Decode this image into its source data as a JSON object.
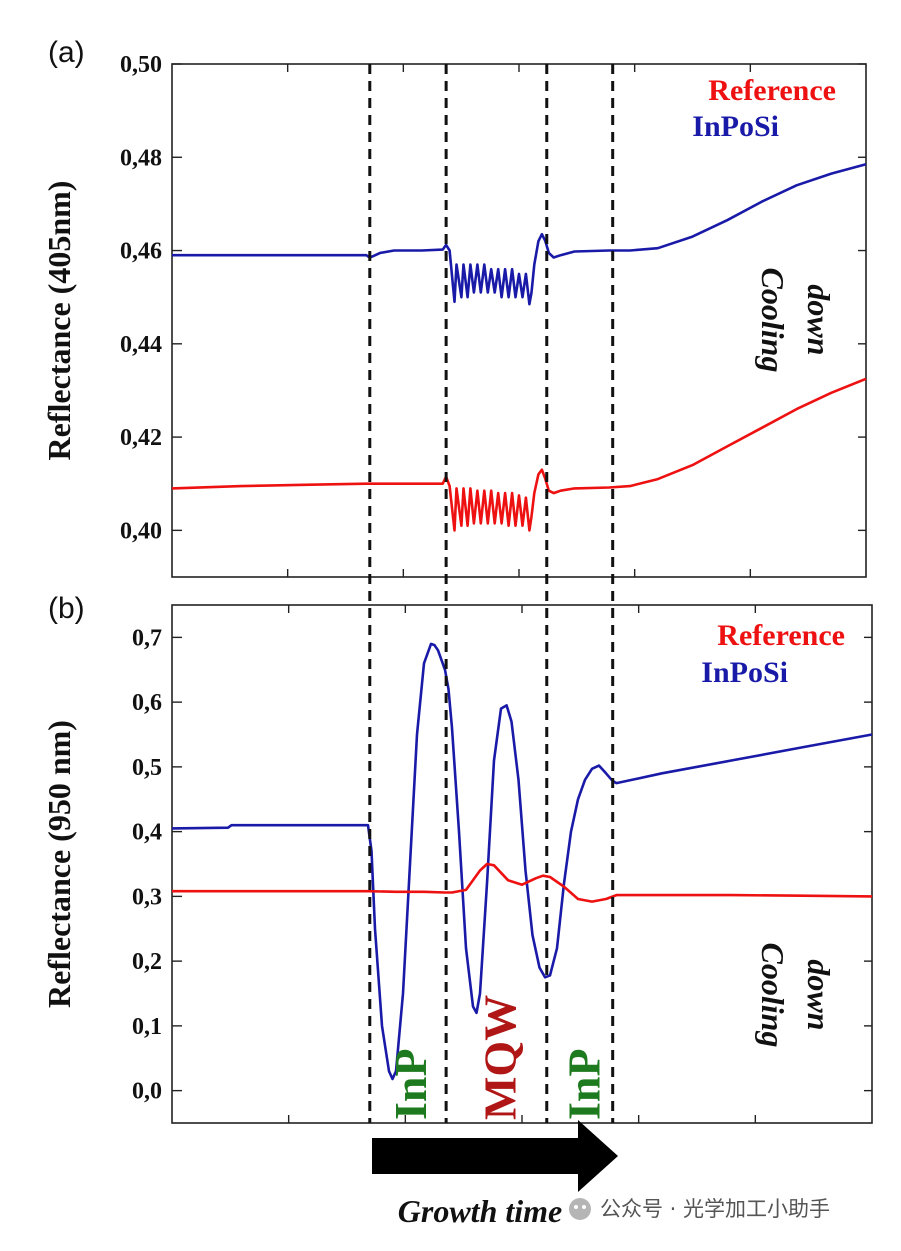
{
  "colors": {
    "reference": "#ee1111",
    "inposi": "#1a1aa8",
    "inp_label": "#1e7a1e",
    "mqw_label": "#b01616",
    "arrow": "#000000"
  },
  "annotations": {
    "growth_time": "Growth time",
    "phases": [
      "InP",
      "MQW",
      "InP"
    ],
    "watermark": "公众号 · 光学加工小助手",
    "watermark_icon": "wechat-icon"
  },
  "chart_data": [
    {
      "type": "line",
      "panel": "(a)",
      "ylabel": "Reflectance (405nm)",
      "xlabel": "",
      "ylim": [
        0.39,
        0.5
      ],
      "yticks": [
        "0,40",
        "0,42",
        "0,44",
        "0,46",
        "0,48",
        "0,50"
      ],
      "yticks_values": [
        0.4,
        0.42,
        0.44,
        0.46,
        0.48,
        0.5
      ],
      "xlim": [
        0,
        100
      ],
      "legend": [
        "Reference",
        "InPoSi"
      ],
      "legend_position": "top-right",
      "annotation": [
        "Cooling",
        "down"
      ],
      "phase_boundaries": [
        28.5,
        39.5,
        54,
        63.5
      ],
      "series": [
        {
          "name": "InPoSi",
          "x": [
            0,
            10,
            20,
            28,
            28.5,
            29,
            30,
            32,
            36,
            39,
            39.5,
            40,
            40.7,
            41,
            41.7,
            42,
            42.6,
            43,
            43.5,
            44,
            44.5,
            45,
            45.5,
            46,
            46.5,
            47,
            47.5,
            48,
            48.5,
            49,
            49.5,
            50,
            50.5,
            51,
            51.5,
            51.8,
            52.2,
            52.8,
            53.3,
            53.8,
            54.3,
            55,
            56,
            58,
            63,
            66,
            70,
            75,
            80,
            85,
            90,
            95,
            100
          ],
          "y": [
            0.459,
            0.459,
            0.459,
            0.459,
            0.4585,
            0.4588,
            0.4595,
            0.46,
            0.46,
            0.4602,
            0.4612,
            0.46,
            0.449,
            0.457,
            0.45,
            0.457,
            0.45,
            0.457,
            0.451,
            0.457,
            0.451,
            0.457,
            0.451,
            0.456,
            0.451,
            0.456,
            0.45,
            0.456,
            0.45,
            0.456,
            0.45,
            0.455,
            0.45,
            0.455,
            0.4485,
            0.451,
            0.457,
            0.462,
            0.4635,
            0.462,
            0.4595,
            0.4585,
            0.459,
            0.4598,
            0.46,
            0.46,
            0.4605,
            0.463,
            0.4665,
            0.4705,
            0.474,
            0.4765,
            0.4785
          ]
        },
        {
          "name": "Reference",
          "x": [
            0,
            10,
            20,
            28,
            36,
            39,
            39.5,
            40,
            40.7,
            41,
            41.7,
            42,
            42.6,
            43,
            43.5,
            44,
            44.5,
            45,
            45.5,
            46,
            46.5,
            47,
            47.5,
            48,
            48.5,
            49,
            49.5,
            50,
            50.5,
            51,
            51.5,
            51.8,
            52.2,
            52.8,
            53.3,
            53.8,
            54.3,
            55,
            56,
            58,
            63,
            66,
            70,
            75,
            80,
            85,
            90,
            95,
            100
          ],
          "y": [
            0.409,
            0.4095,
            0.4098,
            0.41,
            0.41,
            0.41,
            0.4115,
            0.4095,
            0.4,
            0.409,
            0.401,
            0.409,
            0.401,
            0.409,
            0.4015,
            0.4085,
            0.4015,
            0.4085,
            0.4015,
            0.4085,
            0.4015,
            0.408,
            0.4015,
            0.408,
            0.401,
            0.408,
            0.401,
            0.4075,
            0.401,
            0.407,
            0.4,
            0.403,
            0.408,
            0.412,
            0.413,
            0.411,
            0.4085,
            0.408,
            0.4085,
            0.409,
            0.4092,
            0.4095,
            0.411,
            0.414,
            0.418,
            0.422,
            0.426,
            0.4295,
            0.4325
          ]
        }
      ]
    },
    {
      "type": "line",
      "panel": "(b)",
      "ylabel": "Reflectance (950 nm)",
      "xlabel": "",
      "ylim": [
        -0.05,
        0.75
      ],
      "yticks": [
        "0,0",
        "0,1",
        "0,2",
        "0,3",
        "0,4",
        "0,5",
        "0,6",
        "0,7"
      ],
      "yticks_values": [
        0.0,
        0.1,
        0.2,
        0.3,
        0.4,
        0.5,
        0.6,
        0.7
      ],
      "xlim": [
        0,
        100
      ],
      "legend": [
        "Reference",
        "InPoSi"
      ],
      "legend_position": "top-right",
      "annotation": [
        "Cooling",
        "down"
      ],
      "phase_boundaries": [
        28.5,
        39.5,
        54,
        63.5
      ],
      "series": [
        {
          "name": "InPoSi",
          "x": [
            0,
            8,
            8.5,
            20,
            28,
            28.5,
            29,
            30,
            31,
            31.5,
            32,
            33,
            34,
            35,
            36,
            37,
            37.5,
            38,
            39,
            39.5,
            40,
            41,
            42,
            43,
            43.5,
            44,
            45,
            46,
            47,
            47.8,
            48.5,
            49.5,
            50.5,
            51.5,
            52.5,
            53.3,
            54,
            55,
            56,
            57,
            58,
            59,
            60,
            61,
            62,
            62.8,
            63.3,
            63.5,
            64,
            70,
            80,
            90,
            100
          ],
          "y": [
            0.405,
            0.406,
            0.41,
            0.41,
            0.41,
            0.37,
            0.25,
            0.1,
            0.03,
            0.018,
            0.03,
            0.15,
            0.35,
            0.55,
            0.66,
            0.69,
            0.688,
            0.68,
            0.65,
            0.62,
            0.56,
            0.4,
            0.22,
            0.13,
            0.12,
            0.15,
            0.32,
            0.51,
            0.59,
            0.595,
            0.57,
            0.48,
            0.34,
            0.24,
            0.19,
            0.175,
            0.178,
            0.22,
            0.32,
            0.4,
            0.45,
            0.48,
            0.497,
            0.502,
            0.49,
            0.48,
            0.476,
            0.475,
            0.476,
            0.49,
            0.51,
            0.53,
            0.55
          ]
        },
        {
          "name": "Reference",
          "x": [
            0,
            10,
            20,
            28,
            32,
            36,
            39,
            40,
            42,
            44,
            45,
            46,
            48,
            50,
            52,
            53,
            54,
            56,
            58,
            60,
            62,
            63.5,
            64,
            70,
            80,
            90,
            100
          ],
          "y": [
            0.308,
            0.308,
            0.308,
            0.308,
            0.307,
            0.307,
            0.306,
            0.306,
            0.31,
            0.34,
            0.35,
            0.348,
            0.325,
            0.318,
            0.328,
            0.332,
            0.33,
            0.315,
            0.296,
            0.292,
            0.296,
            0.302,
            0.302,
            0.302,
            0.302,
            0.301,
            0.3
          ]
        }
      ]
    }
  ]
}
